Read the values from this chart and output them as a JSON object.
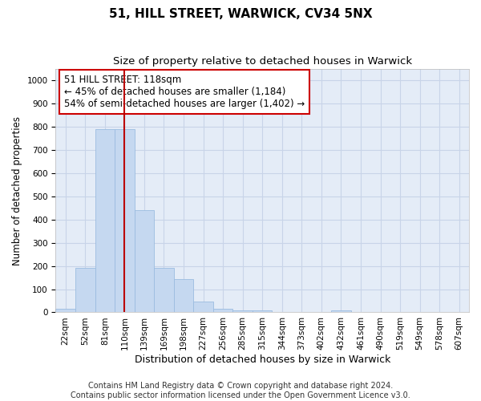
{
  "title": "51, HILL STREET, WARWICK, CV34 5NX",
  "subtitle": "Size of property relative to detached houses in Warwick",
  "xlabel": "Distribution of detached houses by size in Warwick",
  "ylabel": "Number of detached properties",
  "categories": [
    "22sqm",
    "52sqm",
    "81sqm",
    "110sqm",
    "139sqm",
    "169sqm",
    "198sqm",
    "227sqm",
    "256sqm",
    "285sqm",
    "315sqm",
    "344sqm",
    "373sqm",
    "402sqm",
    "432sqm",
    "461sqm",
    "490sqm",
    "519sqm",
    "549sqm",
    "578sqm",
    "607sqm"
  ],
  "values": [
    15,
    193,
    790,
    790,
    440,
    193,
    143,
    47,
    14,
    10,
    7,
    0,
    0,
    0,
    8,
    0,
    0,
    0,
    0,
    0,
    0
  ],
  "bar_color": "#c5d8f0",
  "bar_edge_color": "#9bbce0",
  "vline_x_index": 3,
  "vline_color": "#bb0000",
  "annotation_text": "51 HILL STREET: 118sqm\n← 45% of detached houses are smaller (1,184)\n54% of semi-detached houses are larger (1,402) →",
  "annotation_box_color": "#ffffff",
  "annotation_box_edge_color": "#cc0000",
  "ylim": [
    0,
    1050
  ],
  "yticks": [
    0,
    100,
    200,
    300,
    400,
    500,
    600,
    700,
    800,
    900,
    1000
  ],
  "grid_color": "#c8d4e8",
  "background_color": "#e4ecf7",
  "footnote_line1": "Contains HM Land Registry data © Crown copyright and database right 2024.",
  "footnote_line2": "Contains public sector information licensed under the Open Government Licence v3.0.",
  "title_fontsize": 11,
  "subtitle_fontsize": 9.5,
  "xlabel_fontsize": 9,
  "ylabel_fontsize": 8.5,
  "tick_fontsize": 7.5,
  "annotation_fontsize": 8.5,
  "footnote_fontsize": 7
}
